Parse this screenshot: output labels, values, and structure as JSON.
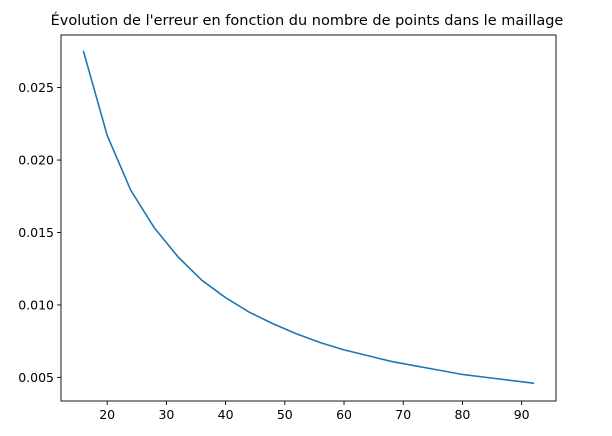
{
  "chart_data": {
    "type": "line",
    "title": "Évolution de l'erreur en fonction du nombre de points dans le maillage",
    "xlabel": "",
    "ylabel": "",
    "xlim": [
      12.2,
      95.8
    ],
    "ylim": [
      0.00337,
      0.02863
    ],
    "xticks": [
      20,
      30,
      40,
      50,
      60,
      70,
      80,
      90
    ],
    "xtick_labels": [
      "20",
      "30",
      "40",
      "50",
      "60",
      "70",
      "80",
      "90"
    ],
    "yticks": [
      0.005,
      0.01,
      0.015,
      0.02,
      0.025
    ],
    "ytick_labels": [
      "0.005",
      "0.010",
      "0.015",
      "0.020",
      "0.025"
    ],
    "grid": false,
    "legend": "none",
    "color": "#1f77b4",
    "series": [
      {
        "x": [
          16,
          20,
          24,
          28,
          32,
          36,
          40,
          44,
          48,
          52,
          56,
          60,
          64,
          68,
          72,
          76,
          80,
          84,
          88,
          92
        ],
        "y": [
          0.0275,
          0.0217,
          0.0179,
          0.0153,
          0.0133,
          0.0117,
          0.0105,
          0.0095,
          0.0087,
          0.008,
          0.0074,
          0.0069,
          0.0065,
          0.0061,
          0.0058,
          0.0055,
          0.0052,
          0.005,
          0.0048,
          0.0046
        ]
      }
    ]
  }
}
